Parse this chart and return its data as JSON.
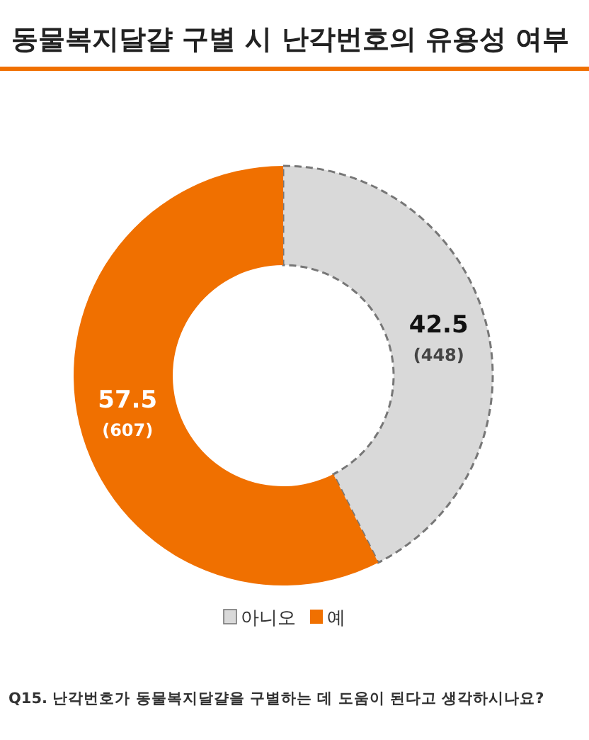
{
  "chart_data": {
    "type": "donut",
    "title": "동물복지달걀 구별 시 난각번호의 유용성 여부",
    "categories": [
      "아니오",
      "예"
    ],
    "values": [
      42.5,
      57.5
    ],
    "colors": [
      "#d9d9d9",
      "#f07000"
    ],
    "value_labels": [
      "42.5\n(448)",
      "57.5\n(607)"
    ],
    "legend": "bottom",
    "annotations": [
      "Q15. 난각번호가 동물복지달걀을 구별하는 데 도움이 된다고 생각하시나요?"
    ]
  }
}
